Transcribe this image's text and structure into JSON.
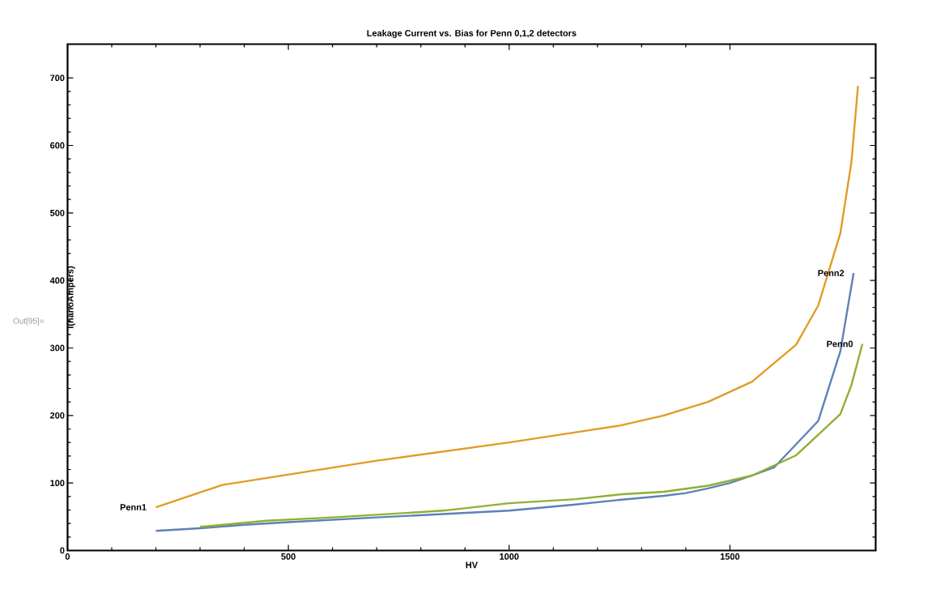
{
  "chart_data": {
    "type": "line",
    "title": "Leakage Current vs. Bias for Penn 0,1,2 detectors",
    "xlabel": "HV",
    "ylabel": "I(nanoAmpers)",
    "xlim": [
      0,
      1830
    ],
    "ylim": [
      0,
      750
    ],
    "xticks": [
      0,
      500,
      1000,
      1500
    ],
    "yticks": [
      0,
      100,
      200,
      300,
      400,
      500,
      600,
      700
    ],
    "grid": false,
    "marker": "none",
    "line_style": "solid",
    "series": [
      {
        "color": "#5e81b5",
        "x": [
          200,
          300,
          400,
          500,
          700,
          850,
          1000,
          1050,
          1150,
          1250,
          1350,
          1400,
          1450,
          1500,
          1550,
          1600,
          1700,
          1750,
          1780
        ],
        "values": [
          29,
          33,
          38,
          42,
          49,
          54,
          59,
          62,
          68,
          75,
          81,
          85,
          92,
          100,
          111,
          123,
          192,
          295,
          411
        ]
      },
      {
        "color": "#e19c24",
        "x": [
          200,
          350,
          700,
          1000,
          1150,
          1250,
          1350,
          1450,
          1550,
          1650,
          1700,
          1750,
          1775,
          1790
        ],
        "values": [
          64,
          97,
          133,
          160,
          175,
          185,
          200,
          220,
          250,
          305,
          363,
          470,
          575,
          688
        ]
      },
      {
        "color": "#8fb032",
        "x": [
          300,
          450,
          600,
          850,
          1000,
          1150,
          1250,
          1350,
          1450,
          1550,
          1600,
          1650,
          1750,
          1775,
          1800
        ],
        "values": [
          35,
          44,
          49,
          59,
          70,
          76,
          83,
          87,
          96,
          111,
          126,
          141,
          202,
          245,
          306
        ]
      }
    ],
    "annotations": [
      {
        "text": "Penn1",
        "x": 200,
        "y": 64
      },
      {
        "text": "Penn2",
        "x": 1780,
        "y": 411
      },
      {
        "text": "Penn0",
        "x": 1800,
        "y": 306
      },
      "Out[95]="
    ]
  }
}
